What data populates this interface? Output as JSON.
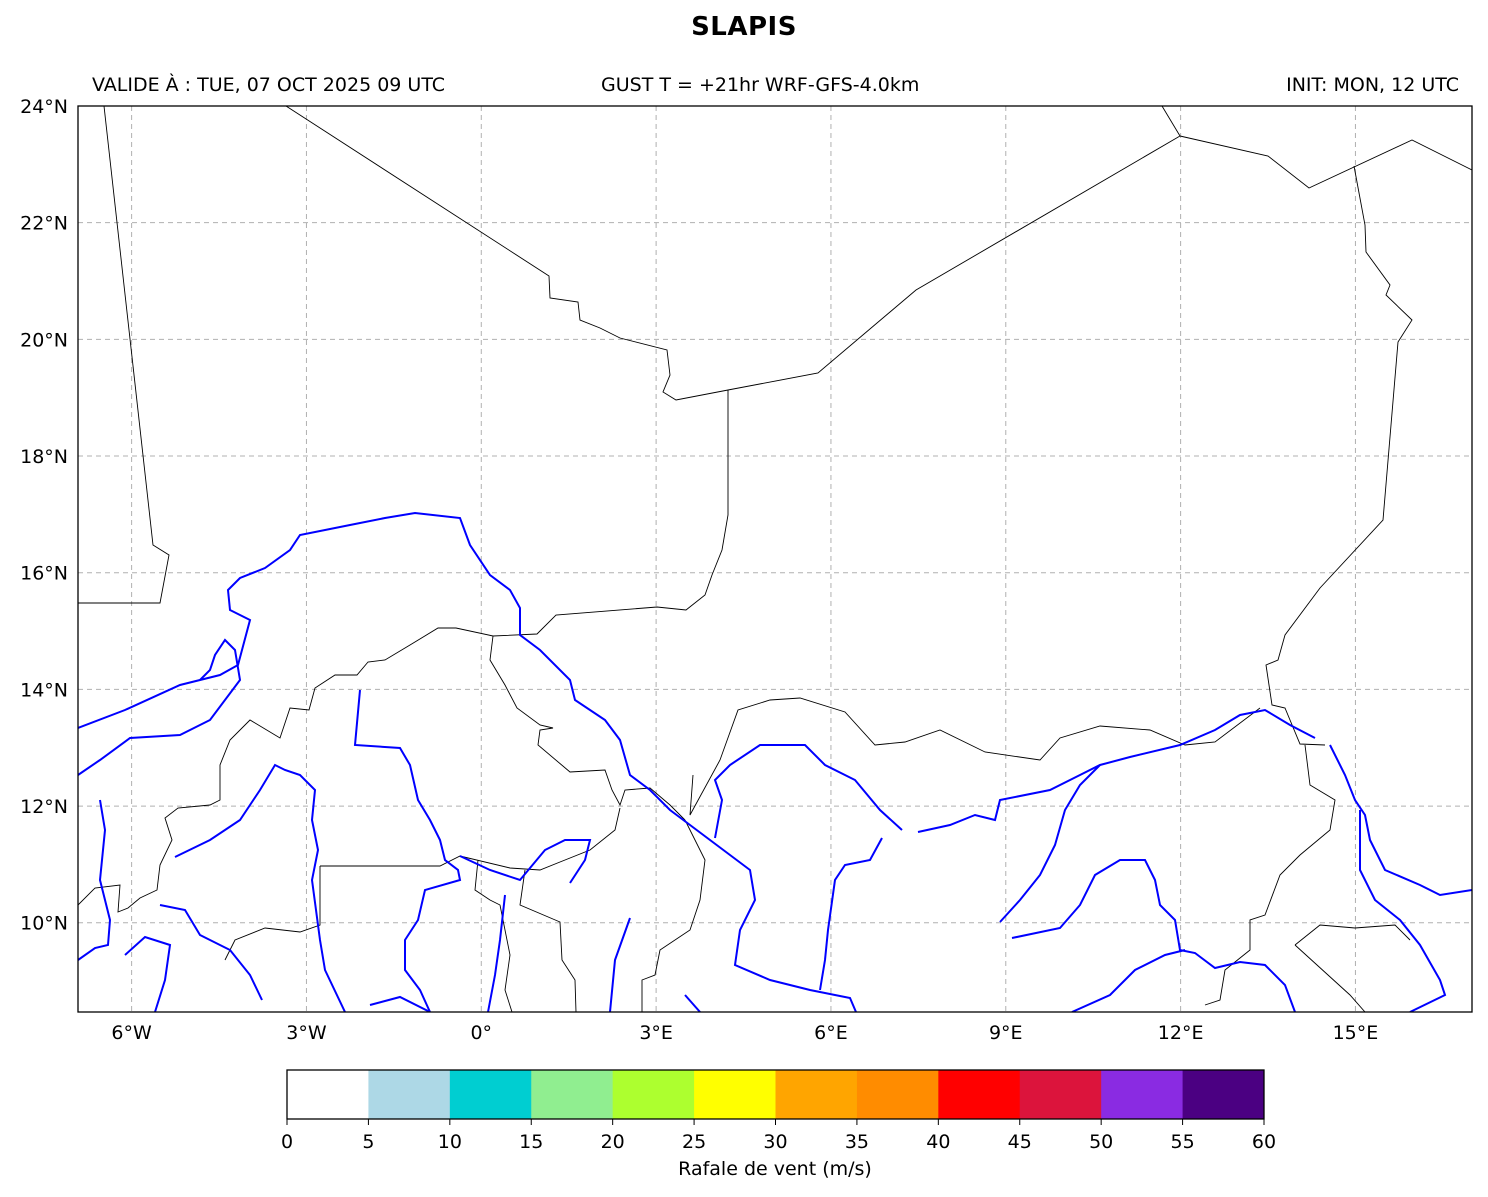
{
  "title": "SLAPIS",
  "header": {
    "valid": "VALIDE À : TUE, 07 OCT 2025 09 UTC",
    "product": "GUST T = +21hr WRF-GFS-4.0km",
    "init": "INIT: MON, 12 UTC"
  },
  "map": {
    "extent_lon": [
      -6.92,
      17.0
    ],
    "extent_lat": [
      8.47,
      24.0
    ],
    "gridlines": true,
    "grid_style": "dashed gray",
    "border_color": "#000000",
    "river_color": "#0000ff",
    "lon_ticks": [
      {
        "value": -6,
        "label": "6°W"
      },
      {
        "value": -3,
        "label": "3°W"
      },
      {
        "value": 0,
        "label": "0°"
      },
      {
        "value": 3,
        "label": "3°E"
      },
      {
        "value": 6,
        "label": "6°E"
      },
      {
        "value": 9,
        "label": "9°E"
      },
      {
        "value": 12,
        "label": "12°E"
      },
      {
        "value": 15,
        "label": "15°E"
      }
    ],
    "lat_ticks": [
      {
        "value": 10,
        "label": "10°N"
      },
      {
        "value": 12,
        "label": "12°N"
      },
      {
        "value": 14,
        "label": "14°N"
      },
      {
        "value": 16,
        "label": "16°N"
      },
      {
        "value": 18,
        "label": "18°N"
      },
      {
        "value": 20,
        "label": "20°N"
      },
      {
        "value": 22,
        "label": "22°N"
      },
      {
        "value": 24,
        "label": "24°N"
      }
    ]
  },
  "colorbar": {
    "label": "Rafale de vent (m/s)",
    "bounds": [
      "0",
      "5",
      "10",
      "15",
      "20",
      "25",
      "30",
      "35",
      "40",
      "45",
      "50",
      "55",
      "60"
    ],
    "colors": [
      "#ffffff",
      "#add8e6",
      "#00ced1",
      "#90ee90",
      "#adff2f",
      "#ffff00",
      "#ffa500",
      "#ff8c00",
      "#ff0000",
      "#dc143c",
      "#8a2be2",
      "#4b0082"
    ]
  }
}
